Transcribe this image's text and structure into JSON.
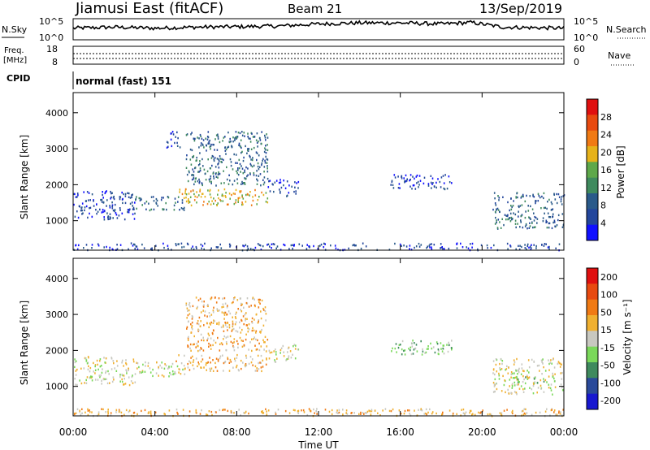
{
  "header": {
    "station": "Jiamusi East (fitACF)",
    "beam": "Beam 21",
    "date": "13/Sep/2019"
  },
  "side_labels": {
    "nsky": "N.Sky",
    "freq_top": "Freq.",
    "freq_unit": "[MHz]",
    "cpid": "CPID",
    "nsearch": "N.Search",
    "nave": "Nave"
  },
  "nsky_ticks": [
    "10^5",
    "10^0"
  ],
  "freq_ticks": [
    "18",
    "8"
  ],
  "nave_ticks": [
    "60",
    "0"
  ],
  "cpid_label": "normal (fast) 151",
  "x_ticks": [
    "00:00",
    "04:00",
    "08:00",
    "12:00",
    "16:00",
    "20:00",
    "00:00"
  ],
  "xlabel": "Time UT",
  "colors": {
    "power": [
      "#1010ff",
      "#23469c",
      "#2a5a8a",
      "#3f8a5e",
      "#5ea84a",
      "#e6b21a",
      "#f07a14",
      "#e84a10",
      "#e01010"
    ],
    "velocity": [
      "#e01010",
      "#e84a10",
      "#f07a14",
      "#f0b030",
      "#c8c8c0",
      "#7ad85a",
      "#3f8a5e",
      "#2a4a9a",
      "#1818d0"
    ]
  },
  "chart_data": [
    {
      "type": "line",
      "name": "N.Sky",
      "x_range_hours": [
        0,
        24
      ],
      "yscale": "log",
      "ylim_labels": [
        "10^0",
        "10^5"
      ],
      "profile": [
        [
          0,
          0.55
        ],
        [
          2,
          0.6
        ],
        [
          4,
          0.55
        ],
        [
          6,
          0.6
        ],
        [
          8,
          0.62
        ],
        [
          10,
          0.65
        ],
        [
          12,
          0.75
        ],
        [
          14,
          0.8
        ],
        [
          16,
          0.8
        ],
        [
          18,
          0.75
        ],
        [
          19.5,
          0.82
        ],
        [
          21,
          0.6
        ],
        [
          24,
          0.55
        ]
      ]
    },
    {
      "type": "line",
      "name": "Freq. / Nave",
      "freq_ylim": [
        8,
        18
      ],
      "nave_ylim": [
        0,
        60
      ],
      "freq_dotted_level_mhz": 12,
      "nave_dotted_level": 30
    },
    {
      "type": "heatmap",
      "title": "Power",
      "colorbar_label": "Power [dB]",
      "colorbar_ticks": [
        4,
        8,
        12,
        16,
        20,
        24,
        28
      ],
      "ylabel": "Slant Range [km]",
      "y_ticks": [
        1000,
        2000,
        3000,
        4000
      ],
      "ylim": [
        180,
        4560
      ],
      "x_range_hours": [
        0,
        24
      ],
      "regions": [
        {
          "t": [
            0.0,
            3.0
          ],
          "r": [
            1050,
            1850
          ],
          "level": 1
        },
        {
          "t": [
            3.0,
            5.5
          ],
          "r": [
            1300,
            1700
          ],
          "level": 2
        },
        {
          "t": [
            4.5,
            5.2
          ],
          "r": [
            3050,
            3500
          ],
          "level": 1
        },
        {
          "t": [
            5.0,
            9.5
          ],
          "r": [
            1450,
            1900
          ],
          "level": 5
        },
        {
          "t": [
            5.5,
            9.5
          ],
          "r": [
            2000,
            3500
          ],
          "level": 2
        },
        {
          "t": [
            9.5,
            11.0
          ],
          "r": [
            1700,
            2200
          ],
          "level": 1
        },
        {
          "t": [
            15.5,
            18.5
          ],
          "r": [
            1900,
            2300
          ],
          "level": 1
        },
        {
          "t": [
            20.5,
            24.0
          ],
          "r": [
            800,
            1800
          ],
          "level": 2
        },
        {
          "t": [
            0.0,
            24.0
          ],
          "r": [
            200,
            400
          ],
          "level": 1
        }
      ]
    },
    {
      "type": "heatmap",
      "title": "Velocity",
      "colorbar_label": "Velocity [m s⁻¹]",
      "colorbar_ticks": [
        200,
        100,
        50,
        15,
        -15,
        -50,
        -100,
        -200
      ],
      "ylabel": "Slant Range [km]",
      "y_ticks": [
        1000,
        2000,
        3000,
        4000
      ],
      "ylim": [
        180,
        4560
      ],
      "x_range_hours": [
        0,
        24
      ],
      "regions": [
        {
          "t": [
            0.0,
            3.0
          ],
          "r": [
            1050,
            1850
          ],
          "level": 4
        },
        {
          "t": [
            3.0,
            5.5
          ],
          "r": [
            1300,
            1700
          ],
          "level": 4
        },
        {
          "t": [
            5.0,
            9.5
          ],
          "r": [
            1450,
            1900
          ],
          "level": 3
        },
        {
          "t": [
            5.5,
            9.5
          ],
          "r": [
            2000,
            3500
          ],
          "level": 3
        },
        {
          "t": [
            9.5,
            11.0
          ],
          "r": [
            1700,
            2200
          ],
          "level": 4
        },
        {
          "t": [
            15.5,
            18.5
          ],
          "r": [
            1900,
            2300
          ],
          "level": 5
        },
        {
          "t": [
            20.5,
            24.0
          ],
          "r": [
            800,
            1800
          ],
          "level": 4
        },
        {
          "t": [
            21.5,
            23.0
          ],
          "r": [
            1100,
            1300
          ],
          "level": 5
        },
        {
          "t": [
            0.0,
            24.0
          ],
          "r": [
            200,
            400
          ],
          "level": 3
        }
      ]
    }
  ]
}
